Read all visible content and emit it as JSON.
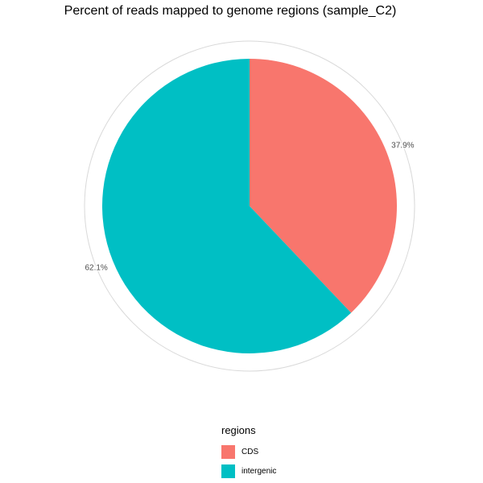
{
  "chart_data": {
    "type": "pie",
    "title": "Percent of reads mapped to genome regions (sample_C2)",
    "categories": [
      "CDS",
      "intergenic"
    ],
    "values": [
      37.9,
      62.1
    ],
    "labels": [
      "37.9%",
      "62.1%"
    ],
    "colors": [
      "#F8766D",
      "#00BFC4"
    ],
    "legend": {
      "title": "regions",
      "position": "bottom"
    },
    "grid": true
  }
}
